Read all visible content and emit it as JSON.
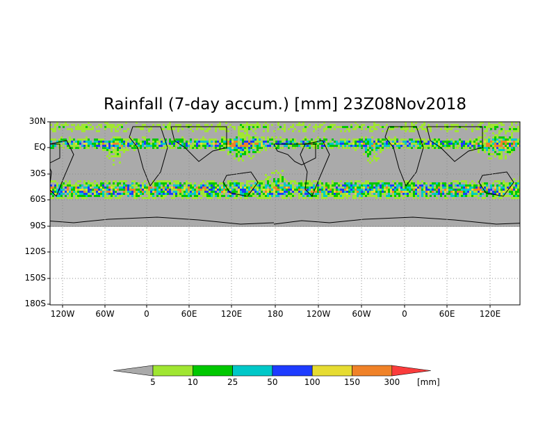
{
  "title": "Rainfall (7-day accum.) [mm] 23Z08Nov2018",
  "map": {
    "lat_labels": [
      "30N",
      "EQ",
      "30S",
      "60S",
      "90S",
      "120S",
      "150S",
      "180S"
    ],
    "lon_labels": [
      "120W",
      "60W",
      "0",
      "60E",
      "120E",
      "180",
      "120W",
      "60W",
      "0",
      "60E",
      "120E"
    ],
    "ocean_color": "#aaaaaa",
    "land_color": "#aaaaaa",
    "no_data_color": "#ffffff"
  },
  "colorbar": {
    "unit": "[mm]",
    "boundaries": [
      "5",
      "10",
      "25",
      "50",
      "100",
      "150",
      "300"
    ],
    "colors": [
      "#aaaaaa",
      "#a0e632",
      "#00c800",
      "#00c8c8",
      "#1e3cff",
      "#e6dc32",
      "#f08228",
      "#fa3c3c"
    ]
  }
}
